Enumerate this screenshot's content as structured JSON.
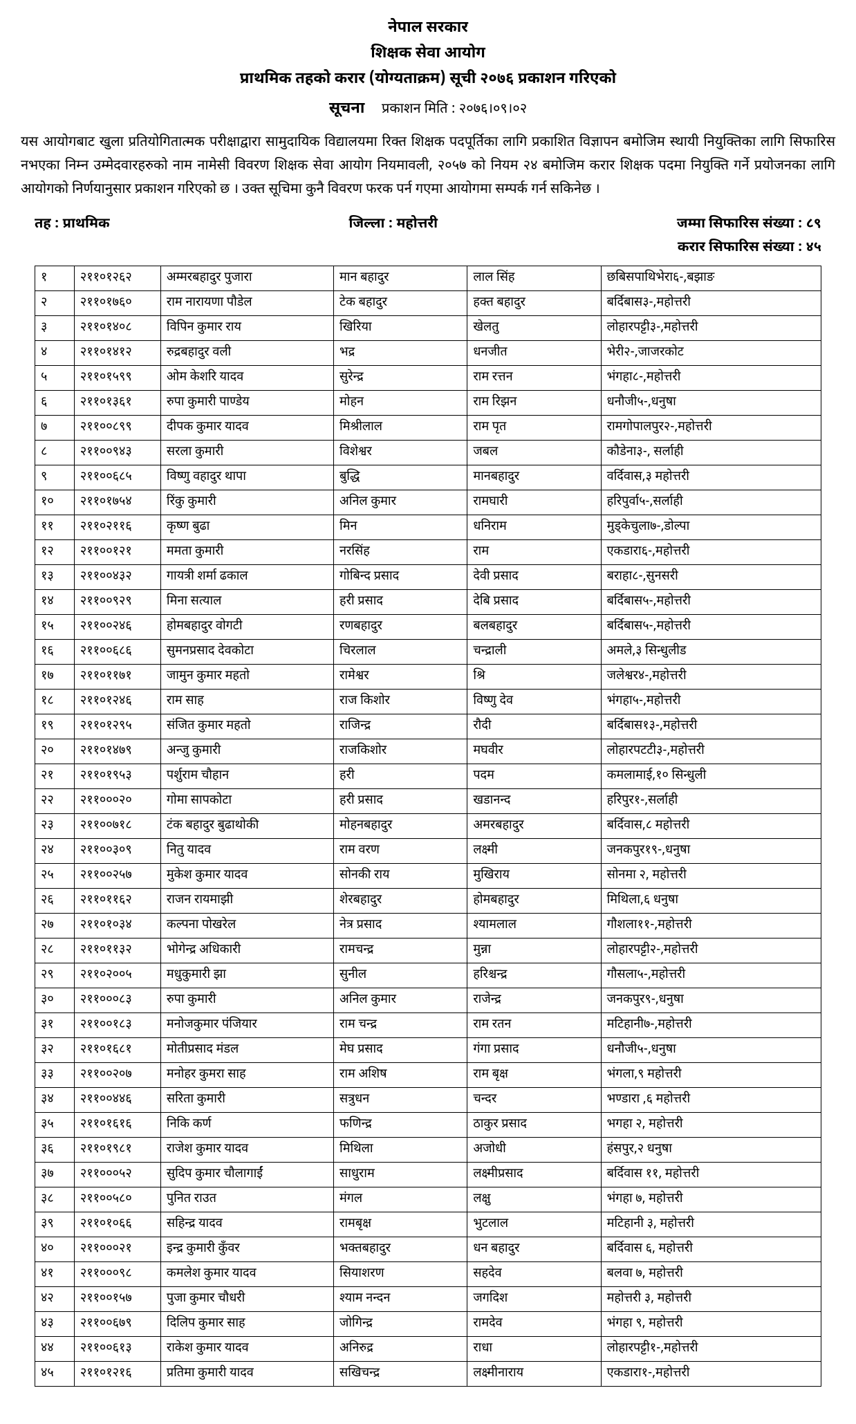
{
  "header": {
    "gov": "नेपाल सरकार",
    "commission": "शिक्षक सेवा आयोग",
    "title": "प्राथमिक तहको करार (योग्यताक्रम) सूची २०७६ प्रकाशन गरिएको",
    "notice_label": "सूचना",
    "pub_date": "प्रकाशन मिति : २०७६।०९।०२"
  },
  "body_text": "यस आयोगबाट खुला प्रतियोगितात्मक परीक्षाद्वारा सामुदायिक विद्यालयमा रिक्त शिक्षक पदपूर्तिका लागि प्रकाशित विज्ञापन बमोजिम स्थायी नियुक्तिका लागि सिफारिस नभएका निम्न उम्मेदवारहरुको नाम नामेसी विवरण शिक्षक सेवा आयोग नियमावली, २०५७ को नियम २४ बमोजिम करार शिक्षक पदमा नियुक्ति गर्ने प्रयोजनका लागि आयोगको निर्णयानुसार प्रकाशन गरिएको छ । उक्त सूचिमा कुनै विवरण फरक पर्न गएमा आयोगमा सम्पर्क गर्न सकिनेछ ।",
  "meta": {
    "level": "तह : प्राथमिक",
    "district": "जिल्ला : महोत्तरी",
    "total_rec": "जम्मा सिफारिस संख्या : ८९",
    "karar_rec": "करार सिफारिस संख्या :   ४५"
  },
  "rows": [
    {
      "sn": "१",
      "roll": "२११०१२६२",
      "name": "अम्मरबहादुर पुजारा",
      "father": "मान बहादुर",
      "gf": "लाल सिंह",
      "addr": "छबिसपाथिभेरा६-,बझाङ"
    },
    {
      "sn": "२",
      "roll": "२११०१७६०",
      "name": "राम नारायणा  पौडेल",
      "father": "टेक बहादुर",
      "gf": "हक्त बहादुर",
      "addr": "बर्दिबास३-,महोत्तरी"
    },
    {
      "sn": "३",
      "roll": "२११०१४०८",
      "name": "विपिन कुमार राय",
      "father": "खिरिया",
      "gf": "खेलतु",
      "addr": "लोहारपट्टी३-,महोत्तरी"
    },
    {
      "sn": "४",
      "roll": "२११०१४१२",
      "name": "रुद्रबहादुर वली",
      "father": "भद्र",
      "gf": "धनजीत",
      "addr": "भेरी२-,जाजरकोट"
    },
    {
      "sn": "५",
      "roll": "२११०१५९९",
      "name": "ओम  केशरि यादव",
      "father": "सुरेन्द्र",
      "gf": "राम रत्तन",
      "addr": "भंगहा८-,महोत्तरी"
    },
    {
      "sn": "६",
      "roll": "२११०१३६१",
      "name": "रुपा कुमारी पाण्डेय",
      "father": "मोहन",
      "gf": "राम रिझन",
      "addr": "धनौजी५-,धनुषा"
    },
    {
      "sn": "७",
      "roll": "२११००८९९",
      "name": "दीपक  कुमार यादव",
      "father": "मिश्रीलाल",
      "gf": "राम पृत",
      "addr": "रामगोपालपुर२-,महोत्तरी"
    },
    {
      "sn": "८",
      "roll": "२११००९४३",
      "name": "सरला कुमारी",
      "father": "विशेश्वर",
      "gf": "जबल",
      "addr": "कौडेना३-, सर्लाही"
    },
    {
      "sn": "९",
      "roll": "२११००६८५",
      "name": "विष्णु वहादुर थापा",
      "father": "बुद्धि",
      "gf": "मानबहादुर",
      "addr": "वर्दिवास,३ महोत्तरी"
    },
    {
      "sn": "१०",
      "roll": "२११०१७५४",
      "name": "रिंकु कुमारी",
      "father": "अनिल कुमार",
      "gf": "रामघारी",
      "addr": "हरिपुर्वा५-,सर्लाही"
    },
    {
      "sn": "११",
      "roll": "२११०२११६",
      "name": "कृष्ण बुढा",
      "father": "मिन",
      "gf": "धनिराम",
      "addr": "मुड्केचुला७-,डोल्पा"
    },
    {
      "sn": "१२",
      "roll": "२११००१२१",
      "name": "ममता कुमारी",
      "father": "नरसिंह",
      "gf": "राम",
      "addr": "एकडारा६-,महोत्तरी"
    },
    {
      "sn": "१३",
      "roll": "२११००४३२",
      "name": "गायत्री शर्मा ढकाल",
      "father": "गोबिन्द प्रसाद",
      "gf": "देवी प्रसाद",
      "addr": "बराहा८-,सुनसरी"
    },
    {
      "sn": "१४",
      "roll": "२११००९२९",
      "name": "मिना सत्याल",
      "father": "हरी प्रसाद",
      "gf": "देबि प्रसाद",
      "addr": "बर्दिबास५-,महोत्तरी"
    },
    {
      "sn": "१५",
      "roll": "२११००२४६",
      "name": "होमबहादुर वोगटी",
      "father": "रणबहादुर",
      "gf": "बलबहादुर",
      "addr": "बर्दिबास५-,महोत्तरी"
    },
    {
      "sn": "१६",
      "roll": "२११००६८६",
      "name": "सुमनप्रसाद देवकोटा",
      "father": "चिरलाल",
      "gf": "चन्द्राली",
      "addr": "अमले,३ सिन्धुलीड"
    },
    {
      "sn": "१७",
      "roll": "२११०११७१",
      "name": "जामुन कुमार महतो",
      "father": "रामेश्वर",
      "gf": "श्रि",
      "addr": "जलेश्वर४-,महोत्तरी"
    },
    {
      "sn": "१८",
      "roll": "२११०१२४६",
      "name": "राम साह",
      "father": "राज किशोर",
      "gf": "विष्णु देव",
      "addr": "भंगहा५-,महोत्तरी"
    },
    {
      "sn": "१९",
      "roll": "२११०१२९५",
      "name": "संजित कुमार महतो",
      "father": "राजिन्द्र",
      "gf": "रौदी",
      "addr": "बर्दिबास१३-,महोत्तरी"
    },
    {
      "sn": "२०",
      "roll": "२११०१४७९",
      "name": "अन्जु कुमारी",
      "father": "राजकिशोर",
      "gf": "मघवीर",
      "addr": "लोहारपटटी३-,महोत्तरी"
    },
    {
      "sn": "२१",
      "roll": "२११०१९५३",
      "name": "पर्शुराम चौहान",
      "father": "हरी",
      "gf": "पदम",
      "addr": "कमलामाई,१० सिन्धुली"
    },
    {
      "sn": "२२",
      "roll": "२११०००२०",
      "name": "गोमा सापकोटा",
      "father": "हरी प्रसाद",
      "gf": "खडानन्द",
      "addr": "हरिपुर१-,सर्लाही"
    },
    {
      "sn": "२३",
      "roll": "२११००७१८",
      "name": "टंक बहादुर बुढाथोकी",
      "father": "मोहनबहादुर",
      "gf": "अमरबहादुर",
      "addr": "बर्दिवास,८ महोत्तरी"
    },
    {
      "sn": "२४",
      "roll": "२११००३०९",
      "name": "नितु यादव",
      "father": "राम वरण",
      "gf": "लक्ष्मी",
      "addr": "जनकपुर१९-,धनुषा"
    },
    {
      "sn": "२५",
      "roll": "२११००२५७",
      "name": "मुकेश कुमार यादव",
      "father": "सोनकी राय",
      "gf": "मुखिराय",
      "addr": "सोनमा २, महोत्तरी"
    },
    {
      "sn": "२६",
      "roll": "२११०११६२",
      "name": "राजन रायमाझी",
      "father": "शेरबहादुर",
      "gf": "होमबहादुर",
      "addr": "मिथिला,६ धनुषा"
    },
    {
      "sn": "२७",
      "roll": "२११०१०३४",
      "name": "कल्पना पोखरेल",
      "father": "नेत्र प्रसाद",
      "gf": "श्यामलाल",
      "addr": "गौशला११-,महोत्तरी"
    },
    {
      "sn": "२८",
      "roll": "२११०११३२",
      "name": "भोगेन्द्र अधिकारी",
      "father": "रामचन्द्र",
      "gf": "मुन्ना",
      "addr": "लोहारपट्टी२-,महोत्तरी"
    },
    {
      "sn": "२९",
      "roll": "२११०२००५",
      "name": "मधुकुमारी झा",
      "father": "सुनील",
      "gf": "हरिश्चन्द्र",
      "addr": "गौसला५-,महोत्तरी"
    },
    {
      "sn": "३०",
      "roll": "२११०००८३",
      "name": "रुपा कुमारी",
      "father": "अनिल कुमार",
      "gf": "राजेन्द्र",
      "addr": "जनकपुर९-,धनुषा"
    },
    {
      "sn": "३१",
      "roll": "२११००१८३",
      "name": "मनोजकुमार पंजियार",
      "father": "राम चन्द्र",
      "gf": "राम रतन",
      "addr": "मटिहानी७-,महोत्तरी"
    },
    {
      "sn": "३२",
      "roll": "२११०१६८१",
      "name": "मोतीप्रसाद मंडल",
      "father": "मेघ प्रसाद",
      "gf": "गंगा प्रसाद",
      "addr": "धनौजी५-,धनुषा"
    },
    {
      "sn": "३३",
      "roll": "२११००२०७",
      "name": "मनोहर कुमरा साह",
      "father": "राम अशिष",
      "gf": "राम बृक्ष",
      "addr": "भंगला,९ महोत्तरी"
    },
    {
      "sn": "३४",
      "roll": "२११००४४६",
      "name": "सरिता कुमारी",
      "father": "सत्रुधन",
      "gf": "चन्दर",
      "addr": "भण्डारा ,६ महोत्तरी"
    },
    {
      "sn": "३५",
      "roll": "२११०१६१६",
      "name": "निकि कर्ण",
      "father": "फणिन्द्र",
      "gf": "ठाकुर प्रसाद",
      "addr": "भगहा २, महोत्तरी"
    },
    {
      "sn": "३६",
      "roll": "२११०१९८१",
      "name": "राजेश कुमार यादव",
      "father": "मिथिला",
      "gf": "अजोधी",
      "addr": "हंसपुर,२ धनुषा"
    },
    {
      "sn": "३७",
      "roll": "२११०००५२",
      "name": "सुदिप कुमार चौलागाईं",
      "father": "साधुराम",
      "gf": "लक्ष्मीप्रसाद",
      "addr": "बर्दिवास ११, महोत्तरी"
    },
    {
      "sn": "३८",
      "roll": "२११००५८०",
      "name": "पुनित राउत",
      "father": "मंगल",
      "gf": "लक्षु",
      "addr": "भंगहा ७, महोत्तरी"
    },
    {
      "sn": "३९",
      "roll": "२११०१०६६",
      "name": "सहिन्द्र यादव",
      "father": "रामबृक्ष",
      "gf": "भुटलाल",
      "addr": "मटिहानी ३, महोत्तरी"
    },
    {
      "sn": "४०",
      "roll": "२११०००२१",
      "name": "इन्द्र कुमारी कुँवर",
      "father": "भक्तबहादुर",
      "gf": "धन बहादुर",
      "addr": "बर्दिवास ६, महोत्तरी"
    },
    {
      "sn": "४१",
      "roll": "२११०००९८",
      "name": "कमलेश कुमार यादव",
      "father": "सियाशरण",
      "gf": "सहदेव",
      "addr": "बलवा ७, महोत्तरी"
    },
    {
      "sn": "४२",
      "roll": "२११००१५७",
      "name": "पुजा कुमार चौधरी",
      "father": "श्याम नन्दन",
      "gf": "जगदिश",
      "addr": "महोत्तरी ३, महोत्तरी"
    },
    {
      "sn": "४३",
      "roll": "२११००६७९",
      "name": "दिलिप कुमार साह",
      "father": "जोगिन्द्र",
      "gf": "रामदेव",
      "addr": "भंगहा ९, महोत्तरी"
    },
    {
      "sn": "४४",
      "roll": "२११००६१३",
      "name": "राकेश कुमार यादव",
      "father": "अनिरुद्र",
      "gf": "राधा",
      "addr": "लोहारपट्टी१-,महोत्तरी"
    },
    {
      "sn": "४५",
      "roll": "२११०१२१६",
      "name": "प्रतिमा कुमारी यादव",
      "father": "सखिचन्द्र",
      "gf": "लक्ष्मीनाराय",
      "addr": "एकडारा१-,महोत्तरी"
    }
  ]
}
